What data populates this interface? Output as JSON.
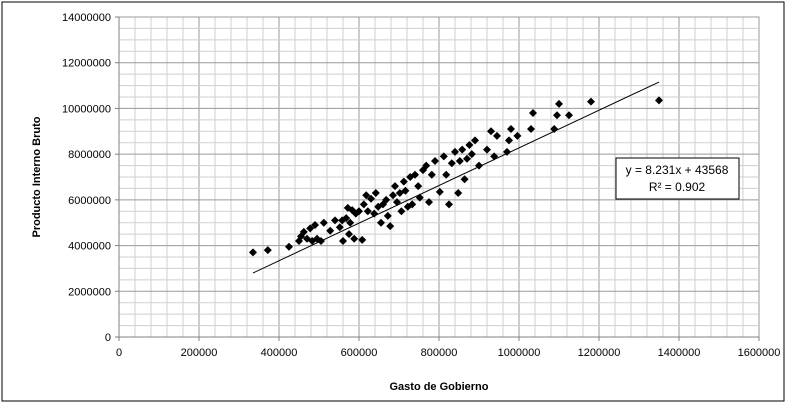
{
  "chart_data": {
    "type": "scatter",
    "title": "",
    "xlabel": "Gasto de Gobierno",
    "ylabel": "Producto Interno Bruto",
    "xlim": [
      0,
      1600000
    ],
    "ylim": [
      0,
      14000000
    ],
    "x_ticks": [
      0,
      200000,
      400000,
      600000,
      800000,
      1000000,
      1200000,
      1400000,
      1600000
    ],
    "y_ticks": [
      0,
      2000000,
      4000000,
      6000000,
      8000000,
      10000000,
      12000000,
      14000000
    ],
    "grid": true,
    "marker": "diamond",
    "marker_color": "#000000",
    "points": [
      [
        335000,
        3700000
      ],
      [
        372000,
        3800000
      ],
      [
        425000,
        3950000
      ],
      [
        450000,
        4200000
      ],
      [
        455000,
        4400000
      ],
      [
        462000,
        4600000
      ],
      [
        470000,
        4300000
      ],
      [
        478000,
        4750000
      ],
      [
        483000,
        4200000
      ],
      [
        490000,
        4900000
      ],
      [
        495000,
        4300000
      ],
      [
        505000,
        4200000
      ],
      [
        512000,
        5000000
      ],
      [
        528000,
        4650000
      ],
      [
        540000,
        5100000
      ],
      [
        552000,
        4800000
      ],
      [
        558000,
        5100000
      ],
      [
        560000,
        4200000
      ],
      [
        568000,
        5200000
      ],
      [
        572000,
        5650000
      ],
      [
        575000,
        4500000
      ],
      [
        578000,
        5000000
      ],
      [
        583000,
        5550000
      ],
      [
        588000,
        4300000
      ],
      [
        592000,
        5400000
      ],
      [
        600000,
        5500000
      ],
      [
        608000,
        4250000
      ],
      [
        612000,
        5800000
      ],
      [
        618000,
        6200000
      ],
      [
        622000,
        5500000
      ],
      [
        630000,
        6050000
      ],
      [
        638000,
        5400000
      ],
      [
        642000,
        6300000
      ],
      [
        648000,
        5700000
      ],
      [
        655000,
        5000000
      ],
      [
        660000,
        5800000
      ],
      [
        668000,
        6000000
      ],
      [
        672000,
        5300000
      ],
      [
        678000,
        4850000
      ],
      [
        685000,
        6200000
      ],
      [
        690000,
        6600000
      ],
      [
        695000,
        5900000
      ],
      [
        702000,
        6300000
      ],
      [
        706000,
        5500000
      ],
      [
        712000,
        6800000
      ],
      [
        716000,
        6400000
      ],
      [
        722000,
        5700000
      ],
      [
        728000,
        7000000
      ],
      [
        733000,
        5800000
      ],
      [
        740000,
        7100000
      ],
      [
        748000,
        6600000
      ],
      [
        752000,
        6100000
      ],
      [
        760000,
        7300000
      ],
      [
        768000,
        7500000
      ],
      [
        775000,
        5900000
      ],
      [
        782000,
        7100000
      ],
      [
        790000,
        7700000
      ],
      [
        802000,
        6350000
      ],
      [
        812000,
        7900000
      ],
      [
        818000,
        7100000
      ],
      [
        825000,
        5800000
      ],
      [
        832000,
        7600000
      ],
      [
        840000,
        8100000
      ],
      [
        848000,
        6300000
      ],
      [
        852000,
        7700000
      ],
      [
        858000,
        8200000
      ],
      [
        864000,
        6900000
      ],
      [
        870000,
        7800000
      ],
      [
        876000,
        8400000
      ],
      [
        882000,
        8000000
      ],
      [
        890000,
        8600000
      ],
      [
        900000,
        7500000
      ],
      [
        920000,
        8200000
      ],
      [
        930000,
        9000000
      ],
      [
        938000,
        7900000
      ],
      [
        945000,
        8800000
      ],
      [
        970000,
        8100000
      ],
      [
        975000,
        8600000
      ],
      [
        980000,
        9100000
      ],
      [
        996000,
        8800000
      ],
      [
        1030000,
        9100000
      ],
      [
        1035000,
        9800000
      ],
      [
        1088000,
        9100000
      ],
      [
        1095000,
        9700000
      ],
      [
        1100000,
        10200000
      ],
      [
        1125000,
        9700000
      ],
      [
        1180000,
        10300000
      ],
      [
        1350000,
        10350000
      ]
    ],
    "trendline": {
      "x_range": [
        335000,
        1350000
      ],
      "slope": 8.231,
      "intercept": 43568
    },
    "annotation": {
      "equation": "y = 8.231x + 43568",
      "r_squared": "R² = 0.902"
    }
  }
}
